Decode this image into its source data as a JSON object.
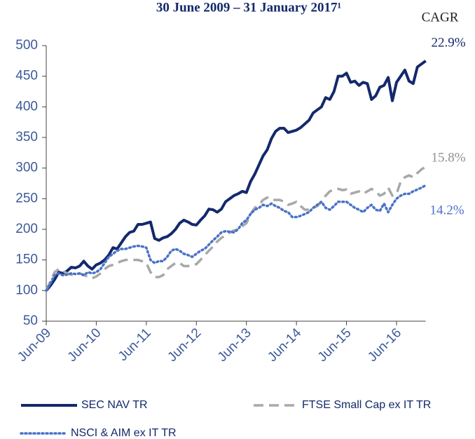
{
  "chart_data": {
    "type": "line",
    "title": "30 June 2009 – 31 January 2017¹",
    "categories": [
      "Jun-09",
      null,
      null,
      null,
      null,
      null,
      null,
      null,
      null,
      null,
      null,
      null,
      "Jun-10",
      null,
      null,
      null,
      null,
      null,
      null,
      null,
      null,
      null,
      null,
      null,
      "Jun-11",
      null,
      null,
      null,
      null,
      null,
      null,
      null,
      null,
      null,
      null,
      null,
      "Jun-12",
      null,
      null,
      null,
      null,
      null,
      null,
      null,
      null,
      null,
      null,
      null,
      "Jun-13",
      null,
      null,
      null,
      null,
      null,
      null,
      null,
      null,
      null,
      null,
      null,
      "Jun-14",
      null,
      null,
      null,
      null,
      null,
      null,
      null,
      null,
      null,
      null,
      null,
      "Jun-15",
      null,
      null,
      null,
      null,
      null,
      null,
      null,
      null,
      null,
      null,
      null,
      "Jun-16",
      null,
      null,
      null,
      null,
      null,
      null,
      null
    ],
    "series": [
      {
        "name": "SEC NAV TR",
        "color": "#14296b",
        "style": "solid",
        "values": [
          100,
          108,
          118,
          130,
          128,
          132,
          138,
          137,
          140,
          148,
          140,
          135,
          142,
          145,
          150,
          158,
          170,
          168,
          178,
          188,
          195,
          197,
          208,
          208,
          210,
          212,
          185,
          182,
          186,
          188,
          193,
          200,
          210,
          215,
          212,
          208,
          207,
          215,
          222,
          233,
          232,
          228,
          233,
          245,
          250,
          255,
          258,
          262,
          260,
          278,
          290,
          305,
          320,
          330,
          348,
          360,
          365,
          365,
          358,
          360,
          362,
          366,
          372,
          378,
          390,
          395,
          400,
          415,
          412,
          425,
          450,
          450,
          455,
          440,
          442,
          435,
          440,
          438,
          412,
          418,
          432,
          435,
          448,
          410,
          440,
          450,
          460,
          442,
          438,
          465,
          470,
          475
        ]
      },
      {
        "name": "FTSE Small Cap ex IT TR",
        "color": "#a8a8a8",
        "style": "dashed",
        "values": [
          100,
          115,
          130,
          135,
          132,
          128,
          126,
          125,
          128,
          126,
          122,
          120,
          123,
          128,
          135,
          140,
          142,
          145,
          148,
          150,
          150,
          150,
          150,
          148,
          145,
          130,
          122,
          122,
          125,
          135,
          140,
          145,
          145,
          140,
          140,
          142,
          143,
          150,
          158,
          165,
          172,
          180,
          186,
          190,
          195,
          198,
          200,
          205,
          210,
          225,
          235,
          240,
          248,
          252,
          248,
          248,
          248,
          245,
          240,
          242,
          245,
          238,
          232,
          232,
          235,
          238,
          245,
          255,
          262,
          265,
          266,
          264,
          265,
          258,
          260,
          262,
          258,
          262,
          266,
          262,
          255,
          258,
          268,
          255,
          258,
          278,
          285,
          288,
          285,
          292,
          298,
          302
        ]
      },
      {
        "name": "NSCI & AIM ex IT TR",
        "color": "#4a72c8",
        "style": "dotted",
        "values": [
          100,
          112,
          125,
          128,
          125,
          126,
          128,
          127,
          128,
          125,
          130,
          128,
          130,
          135,
          145,
          155,
          160,
          165,
          168,
          168,
          170,
          172,
          173,
          172,
          170,
          150,
          145,
          148,
          148,
          155,
          165,
          168,
          165,
          160,
          158,
          155,
          160,
          165,
          168,
          175,
          182,
          188,
          195,
          197,
          196,
          195,
          200,
          210,
          215,
          225,
          232,
          235,
          240,
          238,
          242,
          238,
          235,
          230,
          228,
          220,
          220,
          222,
          225,
          228,
          235,
          240,
          245,
          235,
          232,
          238,
          245,
          245,
          245,
          240,
          235,
          232,
          228,
          235,
          240,
          232,
          230,
          242,
          228,
          240,
          250,
          255,
          258,
          258,
          262,
          265,
          268,
          272
        ]
      }
    ],
    "annotations": [
      {
        "text": "CAGR",
        "color": "#222222"
      },
      {
        "text": "22.9%",
        "color": "#14296b"
      },
      {
        "text": "15.8%",
        "color": "#909090"
      },
      {
        "text": "14.2%",
        "color": "#4a72c8"
      }
    ],
    "ylim": [
      50,
      500
    ],
    "yticks": [
      50,
      100,
      150,
      200,
      250,
      300,
      350,
      400,
      450,
      500
    ]
  }
}
